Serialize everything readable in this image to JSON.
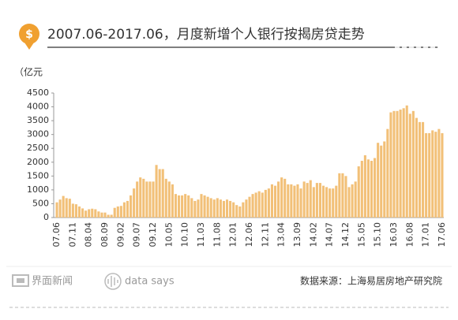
{
  "chart_data": {
    "type": "bar",
    "title": "2007.06-2017.06，月度新增个人银行按揭房贷走势",
    "unit": "（亿元",
    "brand": "界面新闻",
    "tagline": "data says",
    "source": "数据来源：上海易居房地产研究院",
    "color": "#f2c078",
    "grid": false,
    "ylim": [
      0,
      4500
    ],
    "yticks": [
      0,
      500,
      1000,
      1500,
      2000,
      2500,
      3000,
      3500,
      4000,
      4500
    ],
    "categories": [
      "07.06",
      null,
      null,
      null,
      null,
      "07.11",
      null,
      null,
      null,
      null,
      "08.04",
      null,
      null,
      null,
      null,
      "08.09",
      null,
      null,
      null,
      null,
      "09.02",
      null,
      null,
      null,
      null,
      "09.07",
      null,
      null,
      null,
      null,
      "09.12",
      null,
      null,
      null,
      null,
      "10.05",
      null,
      null,
      null,
      null,
      "10.10",
      null,
      null,
      null,
      null,
      "11.03",
      null,
      null,
      null,
      null,
      "11.08",
      null,
      null,
      null,
      null,
      "12.01",
      null,
      null,
      null,
      null,
      "12.06",
      null,
      null,
      null,
      null,
      "12.11",
      null,
      null,
      null,
      null,
      "13.04",
      null,
      null,
      null,
      null,
      "13.09",
      null,
      null,
      null,
      null,
      "14.02",
      null,
      null,
      null,
      null,
      "14.07",
      null,
      null,
      null,
      null,
      "14.12",
      null,
      null,
      null,
      null,
      "15.05",
      null,
      null,
      null,
      null,
      "15.10",
      null,
      null,
      null,
      null,
      "16.03",
      null,
      null,
      null,
      null,
      "16.08",
      null,
      null,
      null,
      null,
      "17.01",
      null,
      null,
      null,
      null,
      "17.06"
    ],
    "values": [
      550,
      650,
      780,
      700,
      680,
      500,
      480,
      400,
      330,
      250,
      300,
      320,
      300,
      220,
      180,
      180,
      100,
      100,
      350,
      400,
      420,
      550,
      600,
      800,
      1050,
      1300,
      1450,
      1400,
      1300,
      1300,
      1300,
      1900,
      1750,
      1750,
      1400,
      1300,
      1200,
      850,
      800,
      800,
      850,
      800,
      700,
      600,
      650,
      850,
      800,
      750,
      700,
      650,
      700,
      650,
      600,
      650,
      600,
      550,
      450,
      400,
      550,
      650,
      750,
      850,
      900,
      950,
      900,
      1000,
      1050,
      1200,
      1150,
      1300,
      1450,
      1400,
      1200,
      1200,
      1150,
      1200,
      1050,
      1300,
      1250,
      1350,
      1100,
      1250,
      1250,
      1150,
      1100,
      1050,
      1050,
      1150,
      1600,
      1600,
      1500,
      1100,
      1200,
      1300,
      1850,
      2050,
      2250,
      2100,
      2050,
      2150,
      2700,
      2600,
      2750,
      3200,
      3800,
      3850,
      3850,
      3900,
      3950,
      4050,
      3750,
      3850,
      3600,
      3450,
      3450,
      3050,
      3050,
      3150,
      3100,
      3200,
      3050
    ]
  }
}
